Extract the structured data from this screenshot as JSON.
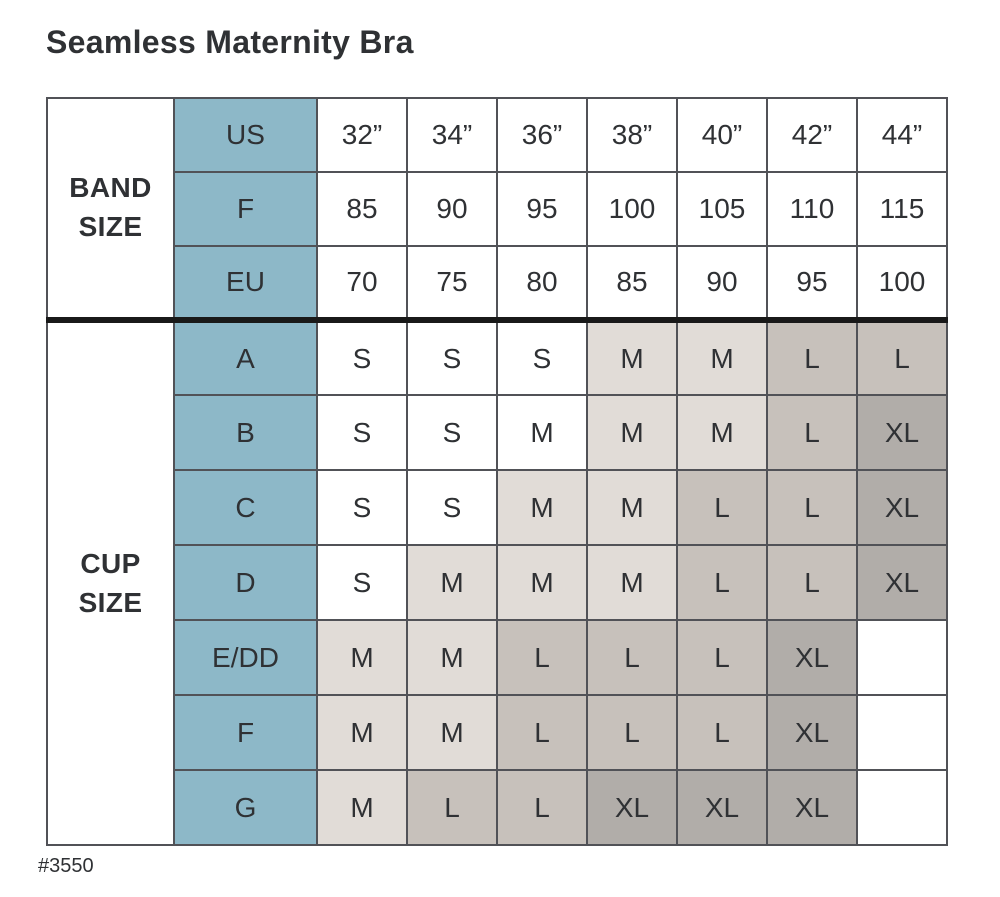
{
  "colors": {
    "header_column_blue": "#8db8c8",
    "shade_white": "#ffffff",
    "shade_light": "#e1dcd7",
    "shade_mid": "#c7c1bb",
    "shade_dark": "#b1ada9",
    "grid_line": "#515257",
    "divider_black": "#191919",
    "text": "#2f3134"
  },
  "chart_data": {
    "type": "table",
    "title": "Seamless Maternity Bra",
    "footnote": "#3550",
    "columns": [
      "32”",
      "34”",
      "36”",
      "38”",
      "40”",
      "42”",
      "44”"
    ],
    "band_size": {
      "group_label": "BAND SIZE",
      "rows": [
        {
          "label": "US",
          "values": [
            "32”",
            "34”",
            "36”",
            "38”",
            "40”",
            "42”",
            "44”"
          ]
        },
        {
          "label": "F",
          "values": [
            "85",
            "90",
            "95",
            "100",
            "105",
            "110",
            "115"
          ]
        },
        {
          "label": "EU",
          "values": [
            "70",
            "75",
            "80",
            "85",
            "90",
            "95",
            "100"
          ]
        }
      ]
    },
    "cup_size": {
      "group_label": "CUP SIZE",
      "rows": [
        {
          "label": "A",
          "cells": [
            {
              "size": "S",
              "shade": "white"
            },
            {
              "size": "S",
              "shade": "white"
            },
            {
              "size": "S",
              "shade": "white"
            },
            {
              "size": "M",
              "shade": "light"
            },
            {
              "size": "M",
              "shade": "light"
            },
            {
              "size": "L",
              "shade": "mid"
            },
            {
              "size": "L",
              "shade": "mid"
            }
          ]
        },
        {
          "label": "B",
          "cells": [
            {
              "size": "S",
              "shade": "white"
            },
            {
              "size": "S",
              "shade": "white"
            },
            {
              "size": "M",
              "shade": "white"
            },
            {
              "size": "M",
              "shade": "light"
            },
            {
              "size": "M",
              "shade": "light"
            },
            {
              "size": "L",
              "shade": "mid"
            },
            {
              "size": "XL",
              "shade": "dark"
            }
          ]
        },
        {
          "label": "C",
          "cells": [
            {
              "size": "S",
              "shade": "white"
            },
            {
              "size": "S",
              "shade": "white"
            },
            {
              "size": "M",
              "shade": "light"
            },
            {
              "size": "M",
              "shade": "light"
            },
            {
              "size": "L",
              "shade": "mid"
            },
            {
              "size": "L",
              "shade": "mid"
            },
            {
              "size": "XL",
              "shade": "dark"
            }
          ]
        },
        {
          "label": "D",
          "cells": [
            {
              "size": "S",
              "shade": "white"
            },
            {
              "size": "M",
              "shade": "light"
            },
            {
              "size": "M",
              "shade": "light"
            },
            {
              "size": "M",
              "shade": "light"
            },
            {
              "size": "L",
              "shade": "mid"
            },
            {
              "size": "L",
              "shade": "mid"
            },
            {
              "size": "XL",
              "shade": "dark"
            }
          ]
        },
        {
          "label": "E/DD",
          "cells": [
            {
              "size": "M",
              "shade": "light"
            },
            {
              "size": "M",
              "shade": "light"
            },
            {
              "size": "L",
              "shade": "mid"
            },
            {
              "size": "L",
              "shade": "mid"
            },
            {
              "size": "L",
              "shade": "mid"
            },
            {
              "size": "XL",
              "shade": "dark"
            },
            {
              "size": "",
              "shade": "white"
            }
          ]
        },
        {
          "label": "F",
          "cells": [
            {
              "size": "M",
              "shade": "light"
            },
            {
              "size": "M",
              "shade": "light"
            },
            {
              "size": "L",
              "shade": "mid"
            },
            {
              "size": "L",
              "shade": "mid"
            },
            {
              "size": "L",
              "shade": "mid"
            },
            {
              "size": "XL",
              "shade": "dark"
            },
            {
              "size": "",
              "shade": "white"
            }
          ]
        },
        {
          "label": "G",
          "cells": [
            {
              "size": "M",
              "shade": "light"
            },
            {
              "size": "L",
              "shade": "mid"
            },
            {
              "size": "L",
              "shade": "mid"
            },
            {
              "size": "XL",
              "shade": "dark"
            },
            {
              "size": "XL",
              "shade": "dark"
            },
            {
              "size": "XL",
              "shade": "dark"
            },
            {
              "size": "",
              "shade": "white"
            }
          ]
        }
      ]
    }
  }
}
